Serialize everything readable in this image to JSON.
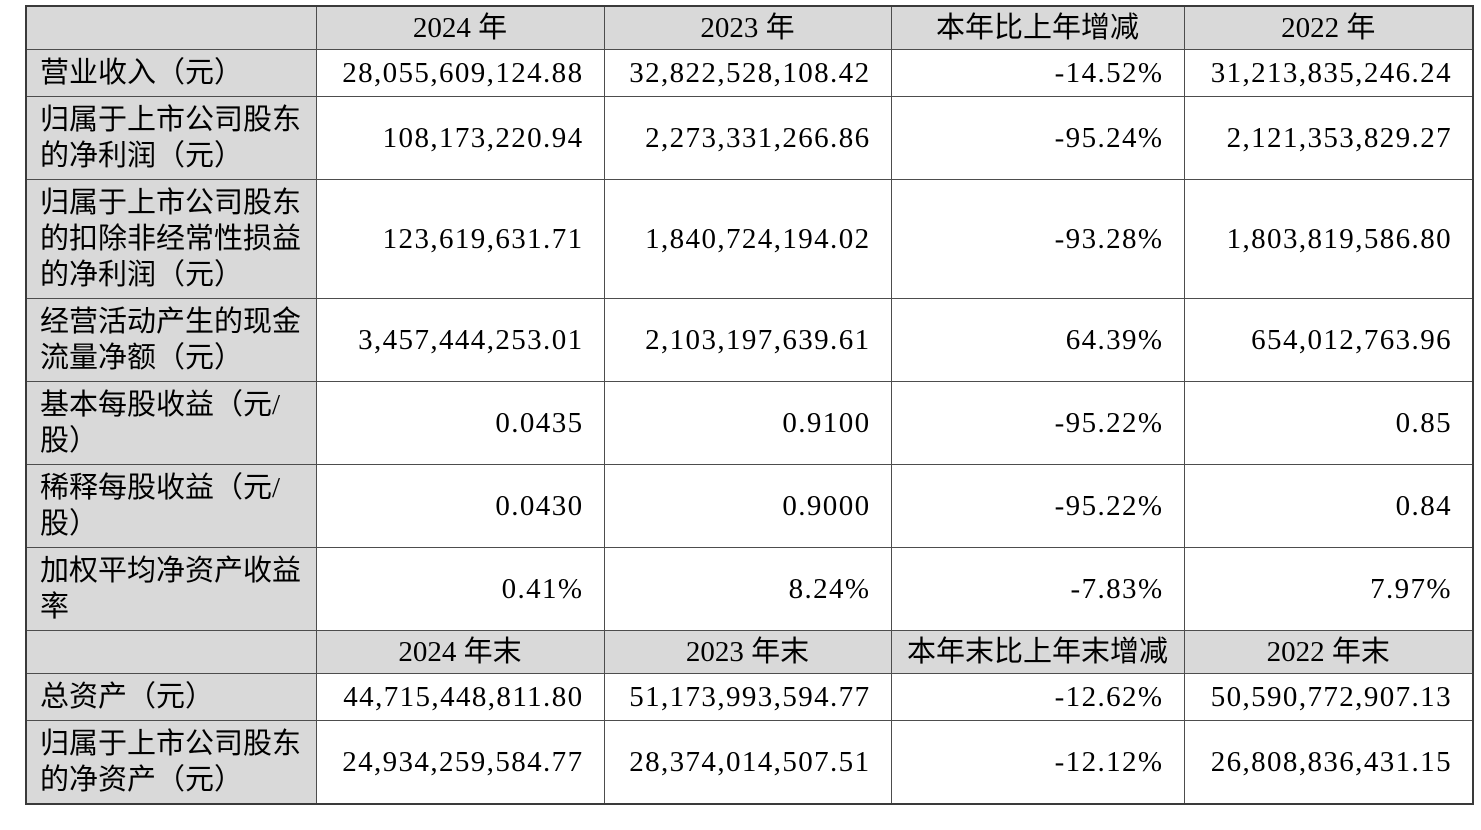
{
  "colors": {
    "header_bg": "#d9d9d9",
    "label_bg": "#d9d9d9",
    "cell_bg": "#ffffff",
    "grid_line": "#4d4d4d",
    "text": "#000000"
  },
  "table": {
    "sections": [
      {
        "header": {
          "cells": [
            "",
            "2024 年",
            "2023 年",
            "本年比上年增减",
            "2022 年"
          ]
        },
        "rows": [
          {
            "label": "营业收入（元）",
            "values": [
              "28,055,609,124.88",
              "32,822,528,108.42",
              "-14.52%",
              "31,213,835,246.24"
            ]
          },
          {
            "label": "归属于上市公司股东\n的净利润（元）",
            "values": [
              "108,173,220.94",
              "2,273,331,266.86",
              "-95.24%",
              "2,121,353,829.27"
            ]
          },
          {
            "label": "归属于上市公司股东\n的扣除非经常性损益\n的净利润（元）",
            "values": [
              "123,619,631.71",
              "1,840,724,194.02",
              "-93.28%",
              "1,803,819,586.80"
            ]
          },
          {
            "label": "经营活动产生的现金\n流量净额（元）",
            "values": [
              "3,457,444,253.01",
              "2,103,197,639.61",
              "64.39%",
              "654,012,763.96"
            ]
          },
          {
            "label": "基本每股收益（元/\n股）",
            "values": [
              "0.0435",
              "0.9100",
              "-95.22%",
              "0.85"
            ]
          },
          {
            "label": "稀释每股收益（元/\n股）",
            "values": [
              "0.0430",
              "0.9000",
              "-95.22%",
              "0.84"
            ]
          },
          {
            "label": "加权平均净资产收益\n率",
            "values": [
              "0.41%",
              "8.24%",
              "-7.83%",
              "7.97%"
            ]
          }
        ]
      },
      {
        "header": {
          "cells": [
            "",
            "2024 年末",
            "2023 年末",
            "本年末比上年末增减",
            "2022 年末"
          ]
        },
        "rows": [
          {
            "label": "总资产（元）",
            "values": [
              "44,715,448,811.80",
              "51,173,993,594.77",
              "-12.62%",
              "50,590,772,907.13"
            ]
          },
          {
            "label": "归属于上市公司股东\n的净资产（元）",
            "values": [
              "24,934,259,584.77",
              "28,374,014,507.51",
              "-12.12%",
              "26,808,836,431.15"
            ]
          }
        ]
      }
    ]
  }
}
